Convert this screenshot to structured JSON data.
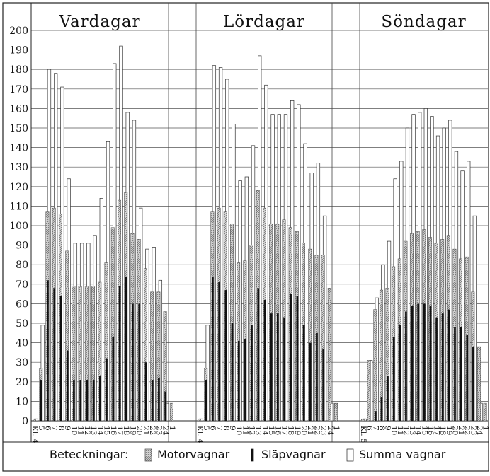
{
  "chart_data": {
    "type": "bar",
    "ylim": [
      0,
      200
    ],
    "yticks": [
      0,
      10,
      20,
      30,
      40,
      50,
      60,
      70,
      80,
      90,
      100,
      110,
      120,
      130,
      140,
      150,
      160,
      170,
      180,
      190,
      200
    ],
    "grid": true,
    "legend_placement": "bottom",
    "legend": {
      "title": "Beteckningar:",
      "items": [
        {
          "key": "motor",
          "label": "Motorvagnar",
          "pattern": "hatched-gray"
        },
        {
          "key": "slap",
          "label": "Släpvagnar",
          "pattern": "solid-black"
        },
        {
          "key": "total",
          "label": "Summa vagnar",
          "pattern": "outline-white"
        }
      ]
    },
    "panels": [
      {
        "title": "Vardagar",
        "categories": [
          "Kl. 4",
          "5",
          "6",
          "7",
          "8",
          "9",
          "10",
          "11",
          "12",
          "13",
          "14",
          "15",
          "16",
          "17",
          "18",
          "19",
          "20",
          "21",
          "22",
          "23",
          "24",
          "1"
        ],
        "series": [
          {
            "name": "Motorvagnar",
            "values": [
              1,
              27,
              107,
              109,
              106,
              87,
              69,
              69,
              69,
              69,
              71,
              81,
              99,
              113,
              117,
              96,
              93,
              78,
              66,
              66,
              56,
              9
            ]
          },
          {
            "name": "Släpvagnar",
            "values": [
              0,
              21,
              72,
              68,
              64,
              36,
              21,
              21,
              21,
              21,
              23,
              32,
              43,
              69,
              74,
              60,
              60,
              30,
              21,
              22,
              15,
              0
            ]
          },
          {
            "name": "Summa vagnar",
            "values": [
              1,
              49,
              180,
              178,
              171,
              124,
              91,
              91,
              91,
              95,
              114,
              143,
              183,
              192,
              158,
              154,
              109,
              88,
              89,
              72,
              9,
              0
            ]
          }
        ]
      },
      {
        "title": "Lördagar",
        "categories": [
          "Kl. 4",
          "5",
          "6",
          "7",
          "8",
          "9",
          "10",
          "11",
          "12",
          "13",
          "14",
          "15",
          "16",
          "17",
          "18",
          "19",
          "20",
          "21",
          "22",
          "23",
          "24",
          "1"
        ],
        "series": [
          {
            "name": "Motorvagnar",
            "values": [
              1,
              27,
              107,
              109,
              107,
              101,
              81,
              82,
              90,
              118,
              109,
              101,
              101,
              103,
              99,
              97,
              91,
              88,
              85,
              85,
              68,
              9
            ]
          },
          {
            "name": "Släpvagnar",
            "values": [
              0,
              21,
              74,
              71,
              67,
              50,
              41,
              42,
              49,
              68,
              62,
              55,
              55,
              53,
              65,
              64,
              49,
              40,
              45,
              37,
              0,
              0
            ]
          },
          {
            "name": "Summa vagnar",
            "values": [
              1,
              49,
              182,
              181,
              175,
              152,
              123,
              125,
              141,
              187,
              172,
              157,
              157,
              157,
              164,
              162,
              142,
              127,
              132,
              105,
              9,
              0
            ]
          }
        ]
      },
      {
        "title": "Söndagar",
        "categories": [
          "Kl. 5",
          "6",
          "7",
          "8",
          "9",
          "10",
          "11",
          "12",
          "13",
          "14",
          "15",
          "16",
          "17",
          "18",
          "19",
          "20",
          "21",
          "22",
          "23",
          "24",
          "1"
        ],
        "series": [
          {
            "name": "Motorvagnar",
            "values": [
              1,
              31,
              57,
              67,
              68,
              79,
              83,
              92,
              96,
              97,
              98,
              94,
              91,
              93,
              95,
              88,
              83,
              84,
              66,
              38,
              9
            ]
          },
          {
            "name": "Släpvagnar",
            "values": [
              0,
              0,
              5,
              12,
              23,
              43,
              49,
              56,
              59,
              60,
              60,
              59,
              53,
              55,
              57,
              48,
              48,
              44,
              38,
              0,
              0
            ]
          },
          {
            "name": "Summa vagnar",
            "values": [
              1,
              31,
              63,
              80,
              92,
              124,
              133,
              150,
              157,
              158,
              160,
              156,
              146,
              150,
              154,
              138,
              128,
              133,
              105,
              9,
              0
            ]
          }
        ]
      }
    ]
  }
}
